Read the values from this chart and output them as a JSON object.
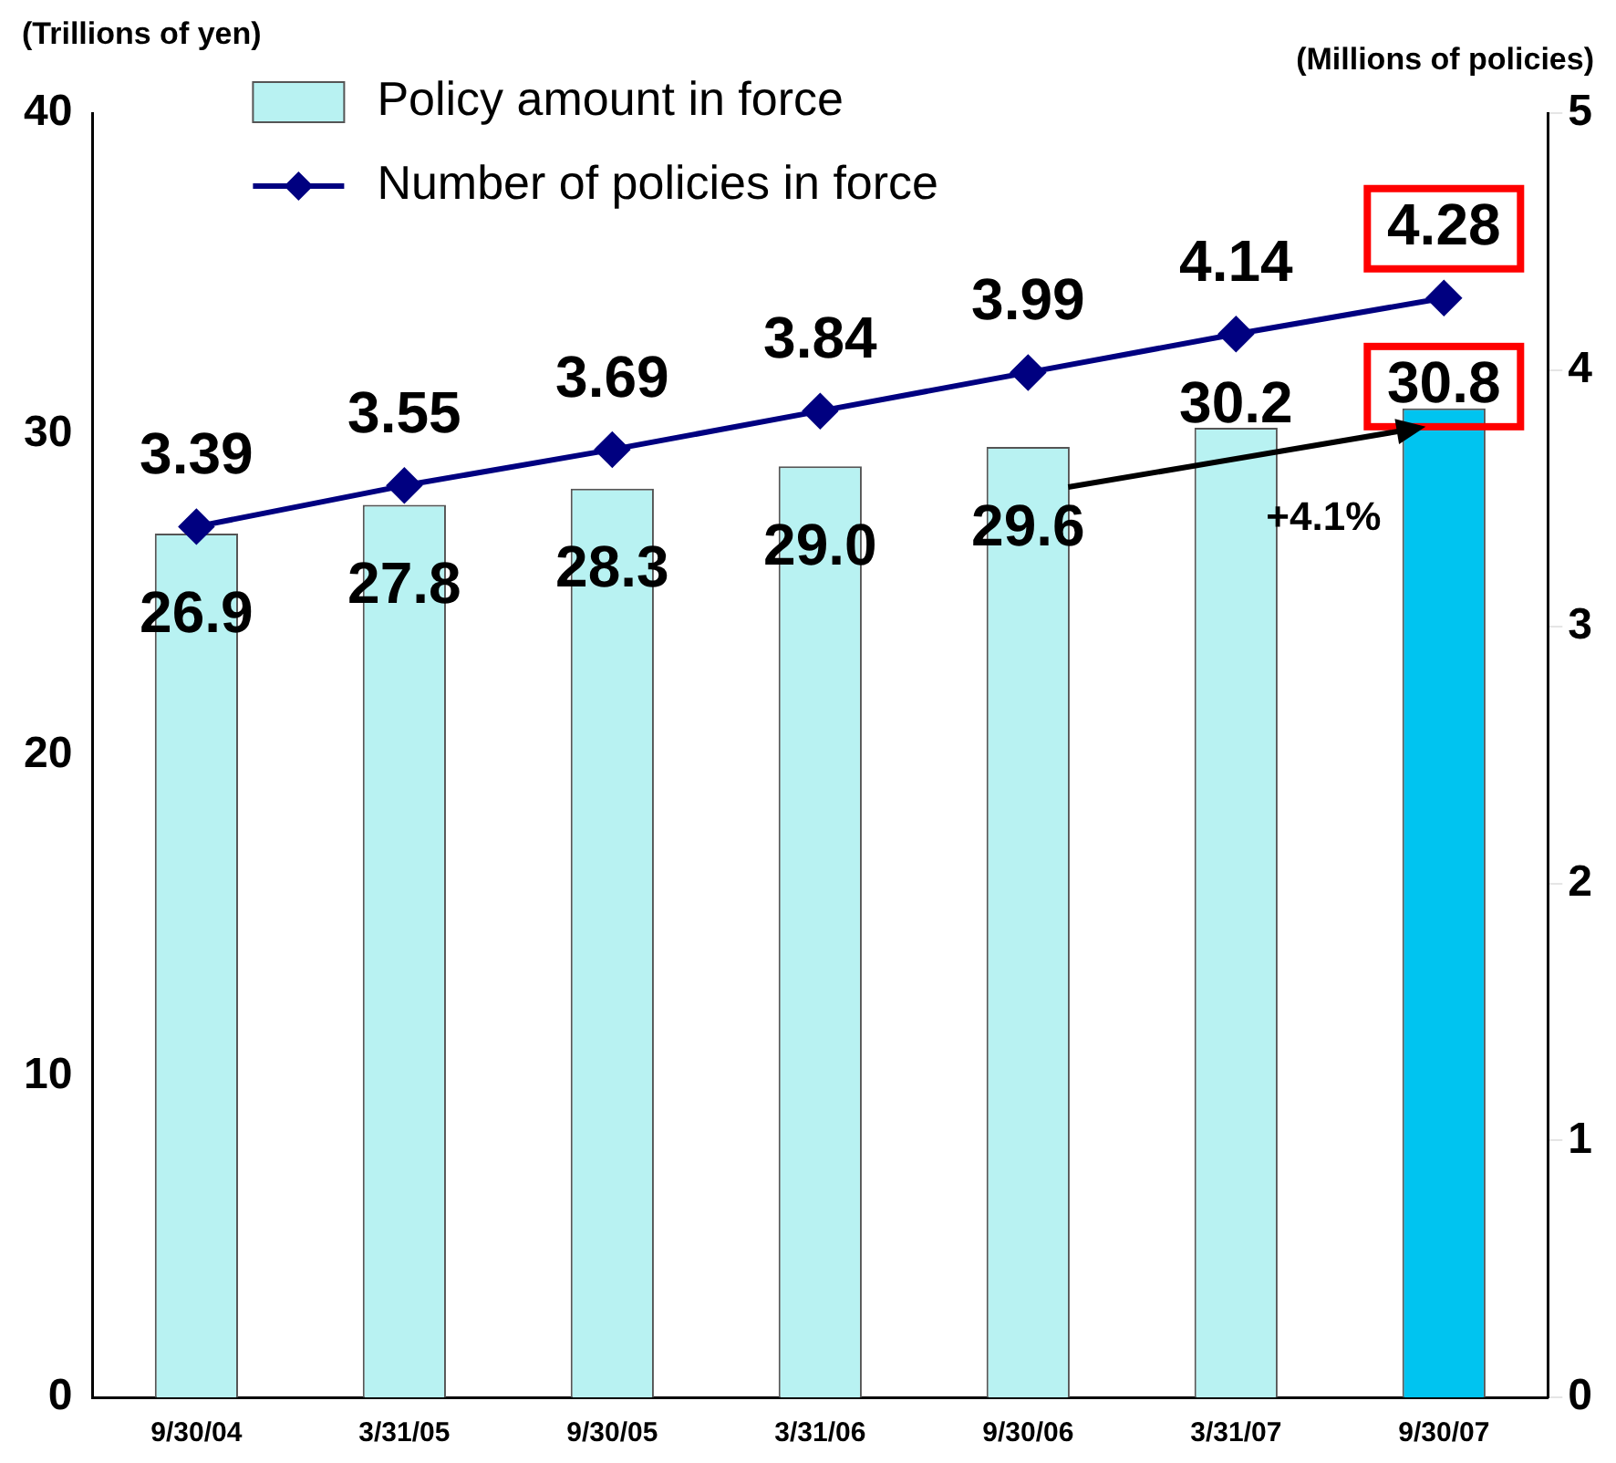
{
  "chart_data": {
    "type": "bar",
    "categories": [
      "9/30/04",
      "3/31/05",
      "9/30/05",
      "3/31/06",
      "9/30/06",
      "3/31/07",
      "9/30/07"
    ],
    "ylabel": "(Trillions of yen)",
    "y2label": "(Millions of policies)",
    "ylim": [
      0,
      40
    ],
    "yticks": [
      0,
      10,
      20,
      30,
      40
    ],
    "y2lim": [
      0,
      5
    ],
    "y2ticks": [
      0,
      1,
      2,
      3,
      4,
      5
    ],
    "grid": false,
    "legend": "top left",
    "annotations": [
      "+4.1%"
    ],
    "series": [
      {
        "name": "Policy amount in force",
        "colors": [
          "#b8f2f2",
          "#b8f2f2",
          "#b8f2f2",
          "#b8f2f2",
          "#b8f2f2",
          "#b8f2f2",
          "#00c4f0"
        ],
        "color": "#b8f2f2",
        "values": [
          26.9,
          27.8,
          28.3,
          29.0,
          29.6,
          30.2,
          30.8
        ],
        "value_labels": [
          "26.9",
          "27.8",
          "28.3",
          "29.0",
          "29.6",
          "30.2",
          "30.8"
        ]
      },
      {
        "name": "Number of policies in force",
        "type": "line",
        "axis": "y2",
        "color": "#000080",
        "marker": "diamond",
        "line_style": "solid",
        "values": [
          3.39,
          3.55,
          3.69,
          3.84,
          3.99,
          4.14,
          4.28
        ],
        "value_labels": [
          "3.39",
          "3.55",
          "3.69",
          "3.84",
          "3.99",
          "4.14",
          "4.28"
        ]
      }
    ]
  }
}
